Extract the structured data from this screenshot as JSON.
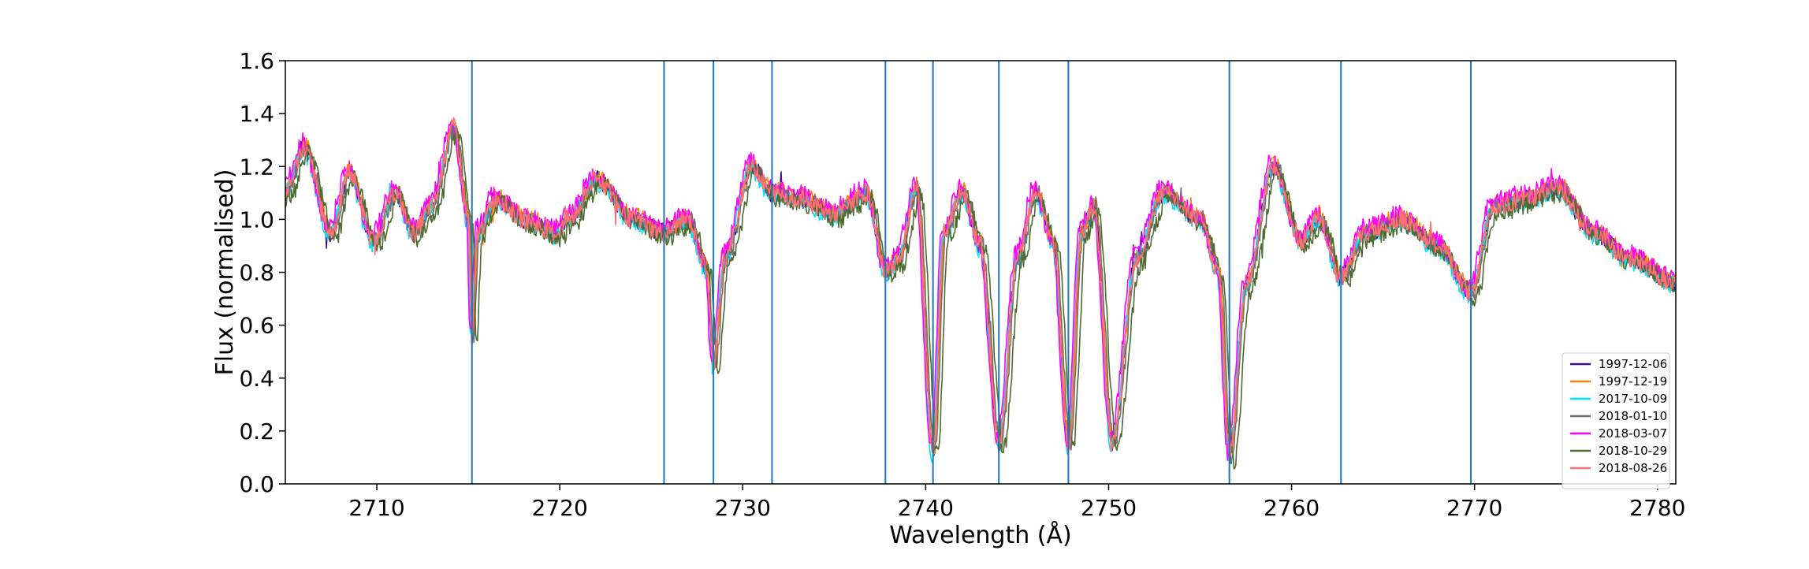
{
  "chart_data": {
    "type": "line",
    "title": "",
    "xlabel": "Wavelength (Å)",
    "ylabel": "Flux (normalised)",
    "xlim": [
      2705,
      2781
    ],
    "ylim": [
      0.0,
      1.6
    ],
    "x_ticks": [
      2710,
      2720,
      2730,
      2740,
      2750,
      2760,
      2770,
      2780
    ],
    "y_ticks": [
      0.0,
      0.2,
      0.4,
      0.6,
      0.8,
      1.0,
      1.2,
      1.4,
      1.6
    ],
    "y_tick_labels": [
      "0.0",
      "0.2",
      "0.4",
      "0.6",
      "0.8",
      "1.0",
      "1.2",
      "1.4",
      "1.6"
    ],
    "grid": false,
    "legend_position": "lower-right",
    "vertical_lines": {
      "color": "#1f77b4",
      "x": [
        2715.2,
        2725.7,
        2728.4,
        2731.6,
        2737.8,
        2740.4,
        2744.0,
        2747.8,
        2756.6,
        2762.7,
        2769.8
      ]
    },
    "spectrum_profile": {
      "x": [
        2705.0,
        2706.0,
        2707.5,
        2708.5,
        2709.8,
        2711.0,
        2712.0,
        2713.0,
        2714.2,
        2715.0,
        2715.2,
        2715.5,
        2716.5,
        2718.0,
        2719.8,
        2720.5,
        2722.0,
        2724.0,
        2725.7,
        2727.0,
        2728.0,
        2728.4,
        2729.0,
        2730.5,
        2731.6,
        2733.0,
        2735.0,
        2736.8,
        2737.8,
        2738.5,
        2739.5,
        2740.4,
        2741.0,
        2742.0,
        2743.0,
        2744.0,
        2745.0,
        2746.0,
        2747.0,
        2747.8,
        2748.5,
        2749.2,
        2750.2,
        2751.5,
        2753.0,
        2755.0,
        2756.0,
        2756.6,
        2757.5,
        2759.0,
        2760.5,
        2761.5,
        2762.7,
        2764.0,
        2766.0,
        2768.0,
        2769.8,
        2771.0,
        2773.0,
        2774.5,
        2776.5,
        2778.5,
        2781.0
      ],
      "y": [
        1.1,
        1.27,
        0.95,
        1.18,
        0.92,
        1.1,
        0.95,
        1.05,
        1.35,
        1.0,
        0.55,
        0.95,
        1.08,
        1.0,
        0.95,
        1.0,
        1.15,
        1.0,
        0.95,
        1.0,
        0.82,
        0.45,
        0.85,
        1.2,
        1.1,
        1.08,
        1.02,
        1.1,
        0.8,
        0.85,
        1.12,
        0.12,
        0.95,
        1.1,
        0.9,
        0.15,
        0.85,
        1.1,
        0.9,
        0.15,
        0.95,
        1.05,
        0.15,
        0.85,
        1.1,
        1.0,
        0.8,
        0.1,
        0.75,
        1.2,
        0.92,
        1.0,
        0.78,
        0.95,
        1.0,
        0.9,
        0.72,
        1.05,
        1.08,
        1.12,
        0.95,
        0.85,
        0.76
      ]
    },
    "series": [
      {
        "name": "1997-12-06",
        "color": "#3b0f8f",
        "offset": 0.0,
        "shift": 0.0
      },
      {
        "name": "1997-12-19",
        "color": "#ff7f0e",
        "offset": 0.01,
        "shift": 0.05
      },
      {
        "name": "2017-10-09",
        "color": "#00e5ff",
        "offset": -0.01,
        "shift": -0.05
      },
      {
        "name": "2018-01-10",
        "color": "#707070",
        "offset": 0.0,
        "shift": 0.1
      },
      {
        "name": "2018-03-07",
        "color": "#ff00ff",
        "offset": 0.02,
        "shift": -0.1
      },
      {
        "name": "2018-10-29",
        "color": "#4c6b2f",
        "offset": -0.02,
        "shift": 0.25
      },
      {
        "name": "2018-08-26",
        "color": "#ff7070",
        "offset": 0.0,
        "shift": 0.0
      }
    ]
  }
}
